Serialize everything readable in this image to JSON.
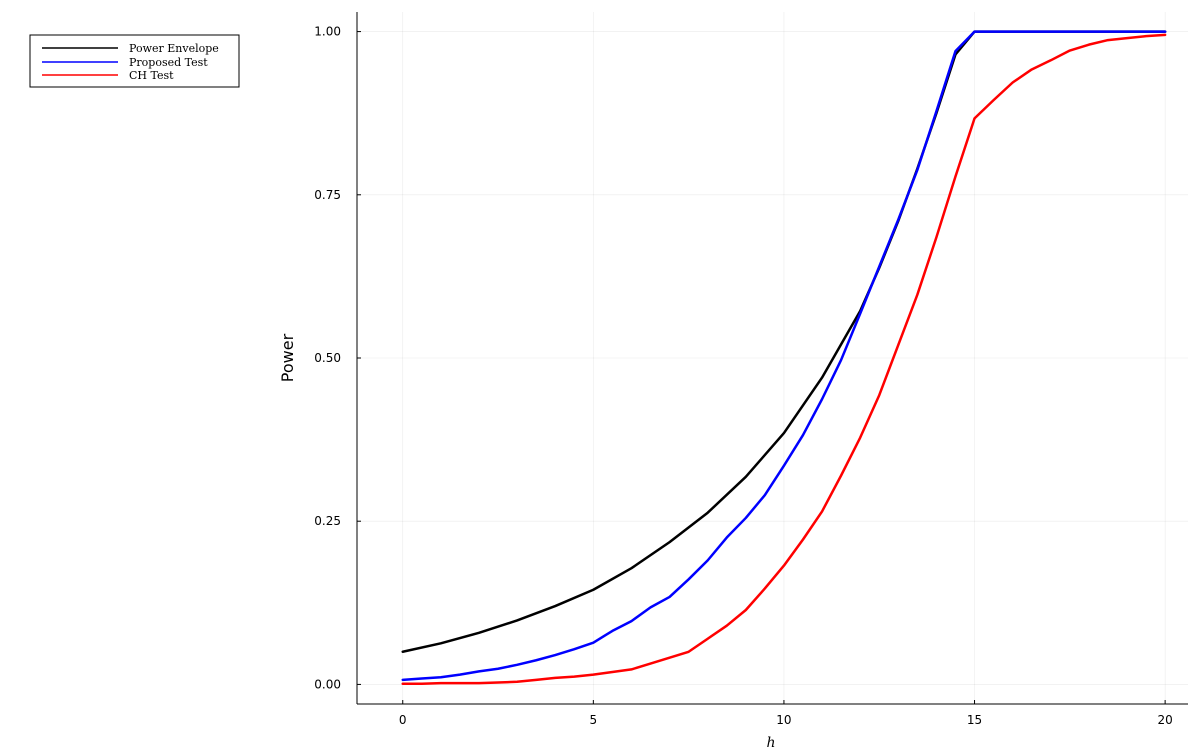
{
  "chart_data": {
    "type": "line",
    "title": "",
    "xlabel": "h",
    "ylabel": "Power",
    "xlim": [
      -1.2,
      20.6
    ],
    "ylim": [
      -0.03,
      1.03
    ],
    "xticks": [
      0,
      5,
      10,
      15,
      20
    ],
    "xtick_labels": [
      "0",
      "5",
      "10",
      "15",
      "20"
    ],
    "yticks": [
      0,
      0.25,
      0.5,
      0.75,
      1.0
    ],
    "ytick_labels": [
      "0.00",
      "0.25",
      "0.50",
      "0.75",
      "1.00"
    ],
    "grid": true,
    "legend_position": "outside-top-left",
    "series": [
      {
        "name": "Power Envelope",
        "color": "#000000",
        "x": [
          0,
          1,
          2,
          3,
          4,
          5,
          6,
          7,
          8,
          9,
          10,
          11,
          12,
          12.5,
          13,
          13.5,
          14,
          14.5,
          15,
          16,
          17,
          18,
          19,
          20
        ],
        "y": [
          0.05,
          0.063,
          0.079,
          0.098,
          0.12,
          0.145,
          0.178,
          0.218,
          0.263,
          0.318,
          0.385,
          0.47,
          0.572,
          0.638,
          0.71,
          0.79,
          0.875,
          0.965,
          1.0,
          1.0,
          1.0,
          1.0,
          1.0,
          1.0
        ]
      },
      {
        "name": "Proposed Test",
        "color": "#0000ff",
        "x": [
          0,
          0.5,
          1,
          1.5,
          2,
          2.5,
          3,
          3.5,
          4,
          4.5,
          5,
          5.5,
          6,
          6.5,
          7,
          7.5,
          8,
          8.5,
          9,
          9.5,
          10,
          10.5,
          11,
          11.5,
          12,
          12.5,
          13,
          13.5,
          14,
          14.5,
          15,
          16,
          17,
          18,
          19,
          20
        ],
        "y": [
          0.007,
          0.009,
          0.011,
          0.015,
          0.02,
          0.024,
          0.03,
          0.037,
          0.045,
          0.054,
          0.064,
          0.082,
          0.097,
          0.118,
          0.134,
          0.161,
          0.19,
          0.225,
          0.255,
          0.29,
          0.335,
          0.382,
          0.437,
          0.497,
          0.568,
          0.64,
          0.712,
          0.788,
          0.878,
          0.97,
          1.0,
          1.0,
          1.0,
          1.0,
          1.0,
          1.0
        ]
      },
      {
        "name": "CH Test",
        "color": "#ff0000",
        "x": [
          0,
          0.5,
          1,
          1.5,
          2,
          2.5,
          3,
          3.5,
          4,
          4.5,
          5,
          5.5,
          6,
          6.5,
          7,
          7.5,
          8,
          8.5,
          9,
          9.5,
          10,
          10.5,
          11,
          11.5,
          12,
          12.5,
          13,
          13.5,
          14,
          14.5,
          15,
          15.5,
          16,
          16.5,
          17,
          17.5,
          18,
          18.5,
          19,
          19.5,
          20
        ],
        "y": [
          0.001,
          0.001,
          0.002,
          0.002,
          0.002,
          0.003,
          0.004,
          0.007,
          0.01,
          0.012,
          0.015,
          0.019,
          0.023,
          0.032,
          0.041,
          0.05,
          0.07,
          0.09,
          0.114,
          0.147,
          0.182,
          0.222,
          0.265,
          0.32,
          0.378,
          0.443,
          0.52,
          0.597,
          0.685,
          0.778,
          0.867,
          0.895,
          0.922,
          0.942,
          0.956,
          0.971,
          0.98,
          0.987,
          0.99,
          0.993,
          0.995
        ]
      }
    ]
  }
}
